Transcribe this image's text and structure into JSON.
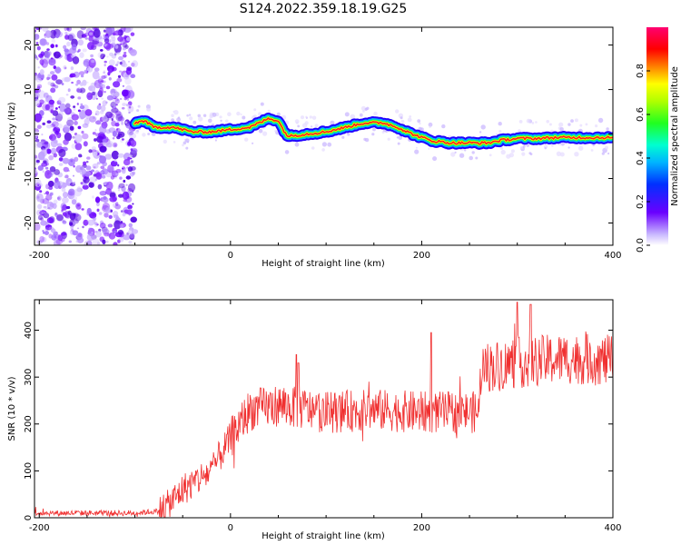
{
  "figure": {
    "title": "S124.2022.359.18.19.G25"
  },
  "chart_data": [
    {
      "type": "heatmap",
      "title": "",
      "xlabel": "Height of straight line (km)",
      "ylabel": "Frequency (Hz)",
      "xlim": [
        -205,
        400
      ],
      "ylim": [
        -25,
        24
      ],
      "xticks": [
        "-200",
        "0",
        "200",
        "400"
      ],
      "yticks": [
        "-20",
        "-10",
        "0",
        "10",
        "20"
      ],
      "colorbar": {
        "label": "Normalized spectral amplitude",
        "range": [
          0,
          1
        ],
        "ticks": [
          "0.0",
          "0.2",
          "0.4",
          "0.6",
          "0.8"
        ],
        "colormap": "rainbow (violet-blue-cyan-green-yellow-red-pink)"
      },
      "noise_region_height_km": [
        -205,
        -100
      ],
      "doppler_curve": {
        "height_km": [
          -100,
          -90,
          -80,
          -60,
          -40,
          -20,
          0,
          20,
          40,
          50,
          55,
          60,
          80,
          100,
          120,
          140,
          160,
          175,
          190,
          210,
          230,
          250,
          270,
          280,
          300,
          320,
          340,
          360,
          380,
          400
        ],
        "frequency_hz": [
          2.5,
          3.0,
          1.5,
          1.5,
          0.5,
          0.5,
          1.0,
          1.5,
          3.5,
          3.0,
          1.0,
          -0.5,
          0.0,
          0.5,
          1.5,
          2.5,
          2.5,
          1.5,
          0.0,
          -1.5,
          -2.0,
          -2.0,
          -2.0,
          -1.5,
          -1.0,
          -1.0,
          -0.8,
          -0.8,
          -0.8,
          -0.8
        ]
      },
      "colors": {
        "curve_core": "#ff2020",
        "curve_edge": "#2000ff"
      }
    },
    {
      "type": "line",
      "title": "",
      "xlabel": "Height of straight line (km)",
      "ylabel": "SNR (10 * v/v)",
      "xlim": [
        -205,
        400
      ],
      "ylim": [
        0,
        465
      ],
      "xticks": [
        "-200",
        "0",
        "200",
        "400"
      ],
      "yticks": [
        "0",
        "100",
        "200",
        "300",
        "400"
      ],
      "series": [
        {
          "color": "#f03030",
          "trend_x": [
            -205,
            -100,
            -70,
            -50,
            -20,
            0,
            20,
            50,
            100,
            150,
            200,
            250,
            260,
            262,
            300,
            350,
            400
          ],
          "trend_y": [
            10,
            10,
            15,
            60,
            100,
            170,
            230,
            240,
            225,
            230,
            225,
            225,
            225,
            320,
            330,
            340,
            335
          ],
          "peaks_x": [
            69,
            71,
            210,
            300,
            314
          ],
          "peaks_y": [
            348,
            330,
            395,
            460,
            455
          ]
        }
      ]
    }
  ]
}
